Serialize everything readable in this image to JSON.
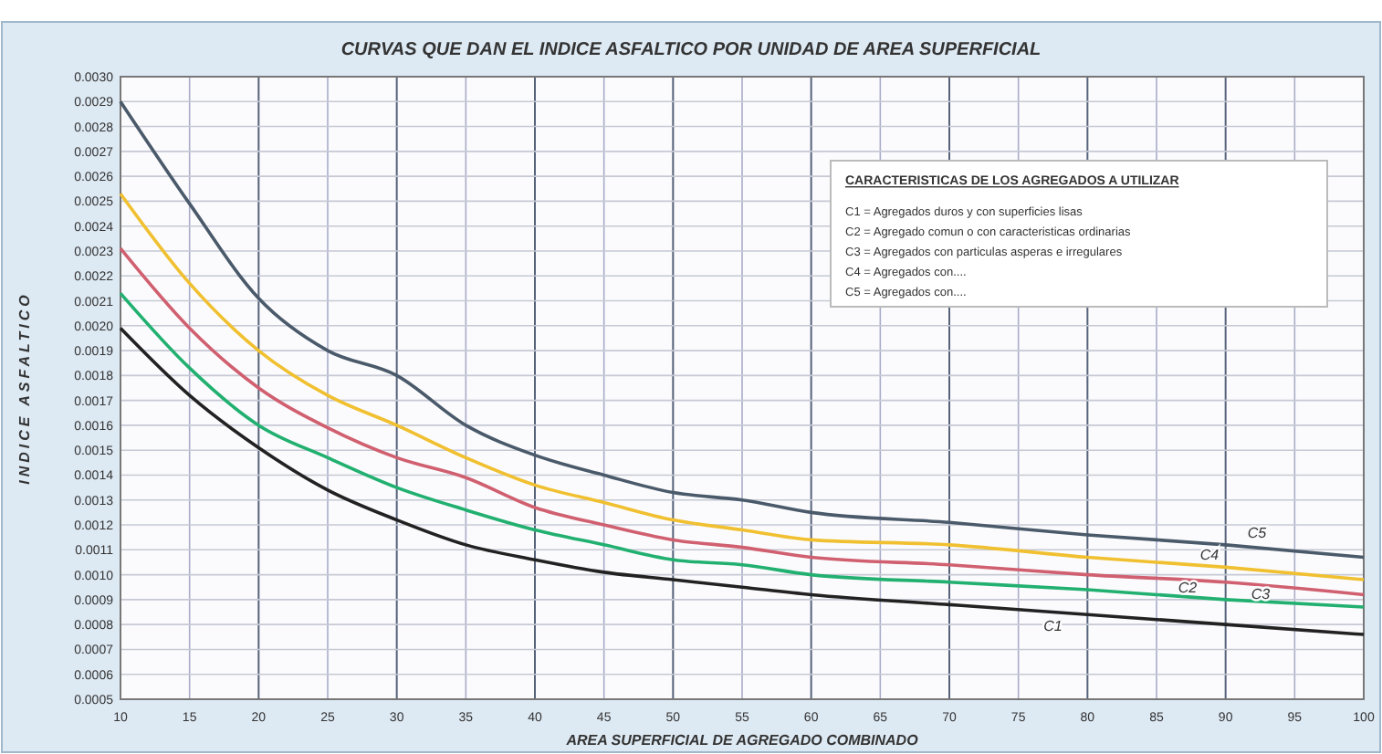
{
  "chart_data": {
    "type": "line",
    "title": "CURVAS QUE DAN EL INDICE ASFALTICO POR UNIDAD DE AREA SUPERFICIAL",
    "xlabel": "AREA SUPERFICIAL DE AGREGADO COMBINADO",
    "ylabel": "INDICE ASFALTICO",
    "x": [
      10,
      15,
      20,
      25,
      30,
      35,
      40,
      45,
      50,
      55,
      60,
      70,
      80,
      90,
      100
    ],
    "series": [
      {
        "name": "C1",
        "color": "#222222",
        "values": [
          0.00199,
          0.00172,
          0.00151,
          0.00134,
          0.00122,
          0.00112,
          0.00106,
          0.00101,
          0.00098,
          0.00095,
          0.00092,
          0.00088,
          0.00084,
          0.0008,
          0.00076
        ]
      },
      {
        "name": "C2",
        "color": "#22b070",
        "values": [
          0.00213,
          0.00183,
          0.0016,
          0.00147,
          0.00135,
          0.00126,
          0.00118,
          0.00112,
          0.00106,
          0.00104,
          0.001,
          0.00097,
          0.00094,
          0.0009,
          0.00087
        ]
      },
      {
        "name": "C3",
        "color": "#d06070",
        "values": [
          0.00231,
          0.00199,
          0.00175,
          0.00159,
          0.00147,
          0.00139,
          0.00127,
          0.0012,
          0.00114,
          0.00111,
          0.00107,
          0.00104,
          0.001,
          0.00097,
          0.00092
        ]
      },
      {
        "name": "C4",
        "color": "#f0c030",
        "values": [
          0.00253,
          0.00217,
          0.0019,
          0.00172,
          0.0016,
          0.00147,
          0.00136,
          0.00129,
          0.00122,
          0.00118,
          0.00114,
          0.00112,
          0.00107,
          0.00103,
          0.00098
        ]
      },
      {
        "name": "C5",
        "color": "#4a5a6a",
        "values": [
          0.0029,
          0.00249,
          0.00211,
          0.0019,
          0.0018,
          0.0016,
          0.00148,
          0.0014,
          0.00133,
          0.0013,
          0.00125,
          0.00121,
          0.00116,
          0.00112,
          0.00107
        ]
      }
    ],
    "xlim": [
      10,
      100
    ],
    "xticks": [
      10,
      15,
      20,
      25,
      30,
      35,
      40,
      45,
      50,
      55,
      60,
      65,
      70,
      75,
      80,
      85,
      90,
      95,
      100
    ],
    "ylim": [
      0.0005,
      0.003
    ],
    "yticks": [
      {
        "value": 0.0005,
        "label": "0.0005"
      },
      {
        "value": 0.0006,
        "label": "0.0006"
      },
      {
        "value": 0.0007,
        "label": "0.0007"
      },
      {
        "value": 0.0008,
        "label": "0.0008"
      },
      {
        "value": 0.0009,
        "label": "0.0009"
      },
      {
        "value": 0.001,
        "label": "0.0010"
      },
      {
        "value": 0.0011,
        "label": "0.0011"
      },
      {
        "value": 0.0012,
        "label": "0.0012"
      },
      {
        "value": 0.0013,
        "label": "0.0013"
      },
      {
        "value": 0.0014,
        "label": "0.0014"
      },
      {
        "value": 0.0015,
        "label": "0.0015"
      },
      {
        "value": 0.0016,
        "label": "0.0016"
      },
      {
        "value": 0.0017,
        "label": "0.0017"
      },
      {
        "value": 0.0018,
        "label": "0.0018"
      },
      {
        "value": 0.0019,
        "label": "0.0019"
      },
      {
        "value": 0.002,
        "label": "0.0020"
      },
      {
        "value": 0.0021,
        "label": "0.0021"
      },
      {
        "value": 0.0022,
        "label": "0.0022"
      },
      {
        "value": 0.0023,
        "label": "0.0023"
      },
      {
        "value": 0.0024,
        "label": "0.0024"
      },
      {
        "value": 0.0025,
        "label": "0.0025"
      },
      {
        "value": 0.0026,
        "label": "0.0026"
      },
      {
        "value": 0.0027,
        "label": "0.0027"
      },
      {
        "value": 0.0028,
        "label": "0.0028"
      },
      {
        "value": 0.0029,
        "label": "0.0029"
      },
      {
        "value": 0.003,
        "label": "0.0030"
      }
    ],
    "grid": true,
    "line_style": "solid",
    "annotations": [
      "CARACTERISTICAS DE LOS AGREGADOS A UTILIZAR",
      "C1  =  Agregados duros y con superficies lisas",
      "C2  =  Agregado comun o con caracteristicas ordinarias",
      "C3  =  Agregados con particulas asperas e irregulares",
      "C4  =  Agregados  con....",
      "C5  =  Agregados con...."
    ]
  }
}
